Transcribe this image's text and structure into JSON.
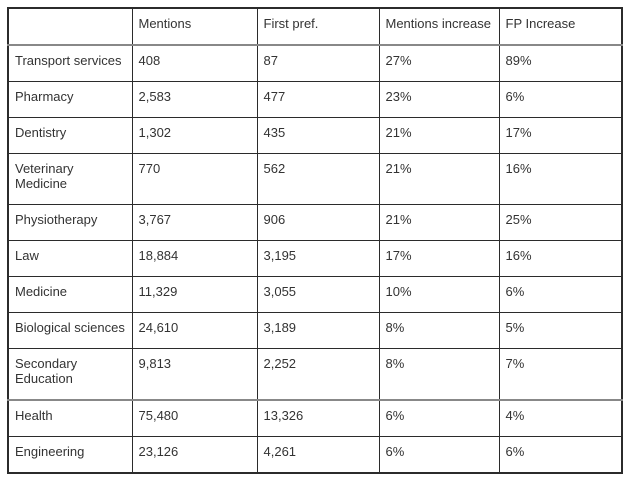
{
  "colors": {
    "text": "#333333",
    "border_dark": "#2b2b2b",
    "border_thick_gray": "#888888",
    "background": "#ffffff"
  },
  "table": {
    "columns": [
      "",
      "Mentions",
      "First pref.",
      "Mentions increase",
      "FP Increase"
    ],
    "rows": [
      {
        "cells": [
          "Transport services",
          "408",
          "87",
          "27%",
          "89%"
        ]
      },
      {
        "cells": [
          "Pharmacy",
          "2,583",
          "477",
          "23%",
          "6%"
        ]
      },
      {
        "cells": [
          "Dentistry",
          "1,302",
          "435",
          "21%",
          "17%"
        ]
      },
      {
        "cells": [
          "Veterinary Medicine",
          "770",
          "562",
          "21%",
          "16%"
        ]
      },
      {
        "cells": [
          "Physiotherapy",
          "3,767",
          "906",
          "21%",
          "25%"
        ]
      },
      {
        "cells": [
          "Law",
          "18,884",
          "3,195",
          "17%",
          "16%"
        ]
      },
      {
        "cells": [
          "Medicine",
          "11,329",
          "3,055",
          "10%",
          "6%"
        ]
      },
      {
        "cells": [
          "Biological sciences",
          "24,610",
          "3,189",
          "8%",
          "5%"
        ]
      },
      {
        "cells": [
          "Secondary Education",
          "9,813",
          "2,252",
          "8%",
          "7%"
        ]
      },
      {
        "cells": [
          "Health",
          "75,480",
          "13,326",
          "6%",
          "4%"
        ]
      },
      {
        "cells": [
          "Engineering",
          "23,126",
          "4,261",
          "6%",
          "6%"
        ]
      }
    ]
  }
}
